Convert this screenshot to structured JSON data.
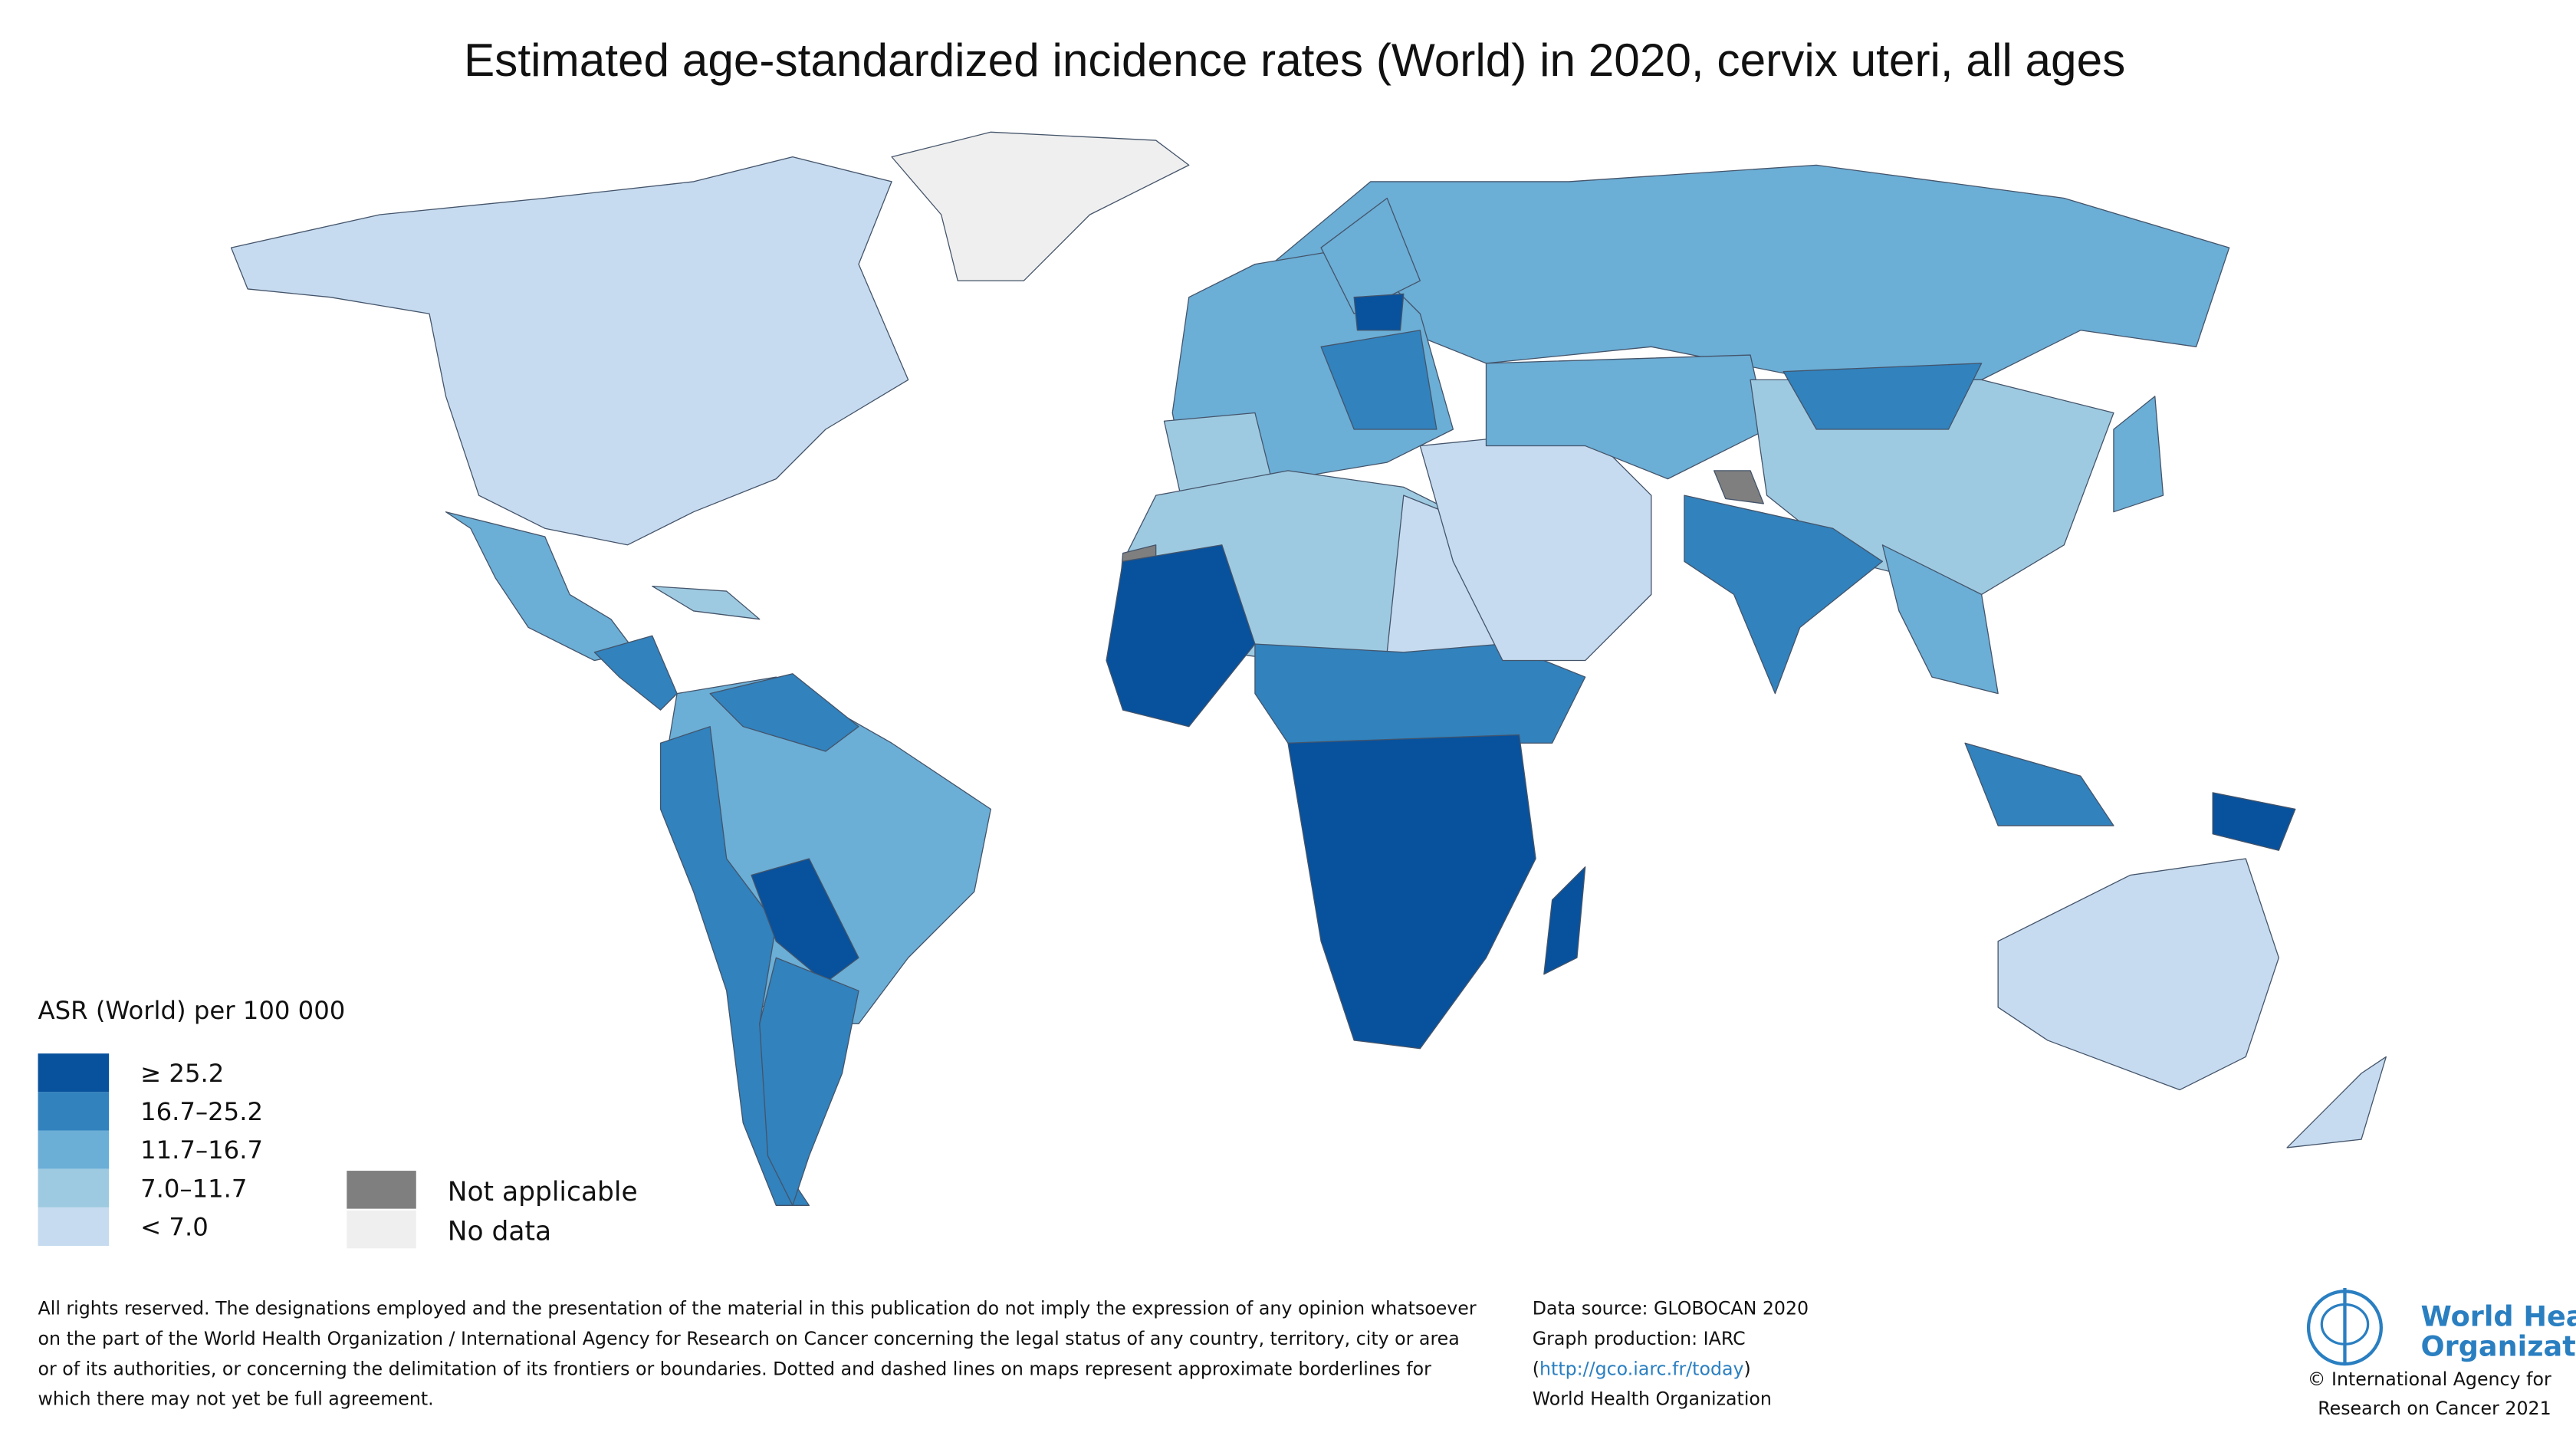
{
  "title": "Estimated age-standardized incidence rates (World) in 2020, cervix uteri, all ages",
  "legend": {
    "title": "ASR (World) per 100 000",
    "items": [
      {
        "label": "≥ 25.2",
        "color": "#08519c"
      },
      {
        "label": "16.7–25.2",
        "color": "#3182bd"
      },
      {
        "label": "11.7–16.7",
        "color": "#6baed6"
      },
      {
        "label": "7.0–11.7",
        "color": "#9ecae1"
      },
      {
        "label": "< 7.0",
        "color": "#c6dbef"
      }
    ],
    "other": [
      {
        "label": "Not applicable",
        "color": "#7f7f7f"
      },
      {
        "label": "No data",
        "color": "#efefef"
      }
    ]
  },
  "disclaimer": [
    "All rights reserved. The designations employed and the presentation of the material in this publication do not imply the expression of any opinion whatsoever",
    "on the part of the World Health Organization / International Agency for Research on Cancer concerning the legal status of any country, territory, city or area",
    "or of its authorities, or concerning the delimitation of its frontiers or boundaries. Dotted and dashed lines on maps represent approximate borderlines for",
    "which there may not yet be full agreement."
  ],
  "source": {
    "lines": [
      "Data source: GLOBOCAN 2020",
      "Graph production: IARC"
    ],
    "link": [
      "(",
      "http://gco.iarc.fr/today",
      ")"
    ],
    "last": "World Health Organization"
  },
  "logo": [
    "World Health",
    "Organization"
  ],
  "copyright": [
    "© International Agency for",
    "Research on Cancer 2021"
  ]
}
